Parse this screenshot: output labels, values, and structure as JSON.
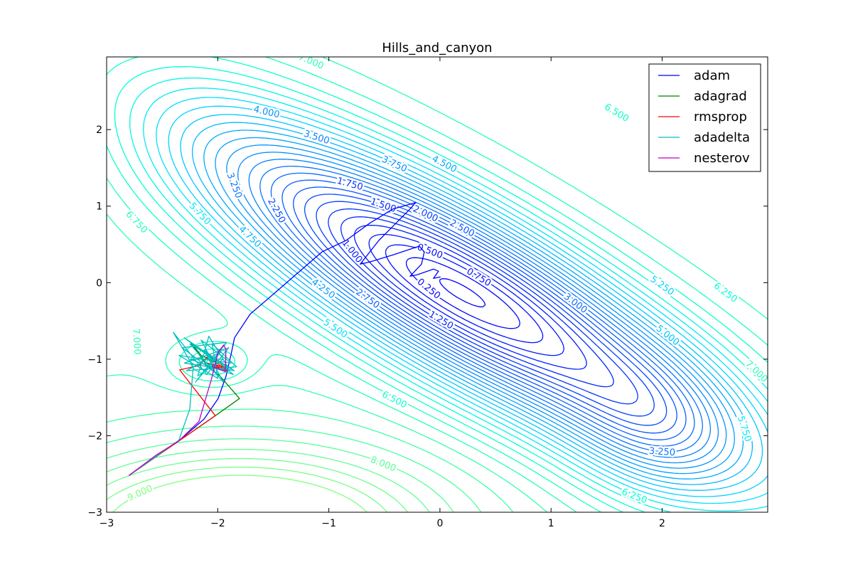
{
  "chart_data": {
    "type": "contour",
    "title": "Hills_and_canyon",
    "xlabel": "",
    "ylabel": "",
    "xlim": [
      -3,
      2.95
    ],
    "ylim": [
      -3,
      2.95
    ],
    "xticks": [
      -3,
      -2,
      -1,
      0,
      1,
      2
    ],
    "yticks": [
      -3,
      -2,
      -1,
      0,
      1,
      2
    ],
    "xtick_labels": [
      "−3",
      "−2",
      "−1",
      "0",
      "1",
      "2"
    ],
    "ytick_labels": [
      "−3",
      "−2",
      "−1",
      "0",
      "1",
      "2"
    ],
    "grid": false,
    "legend_placement": "top-right",
    "contour_levels": {
      "start": 0.25,
      "stop": 9.0,
      "step": 0.25
    },
    "colormap_stops": [
      {
        "level": 0.25,
        "color": "#0000ff"
      },
      {
        "level": 1.5,
        "color": "#0028ff"
      },
      {
        "level": 3.0,
        "color": "#0a6cff"
      },
      {
        "level": 4.5,
        "color": "#00aaff"
      },
      {
        "level": 5.5,
        "color": "#00e0ff"
      },
      {
        "level": 6.25,
        "color": "#00ffd8"
      },
      {
        "level": 7.0,
        "color": "#28ffb4"
      },
      {
        "level": 8.0,
        "color": "#58ff98"
      },
      {
        "level": 9.0,
        "color": "#80ff80"
      }
    ],
    "contour_labels": [
      {
        "text": "7.000",
        "x": -1.16,
        "y": 2.89
      },
      {
        "text": "6.500",
        "x": 1.59,
        "y": 2.22
      },
      {
        "text": "4.000",
        "x": -1.56,
        "y": 2.23
      },
      {
        "text": "3.500",
        "x": -1.11,
        "y": 1.9
      },
      {
        "text": "3.750",
        "x": -0.41,
        "y": 1.55
      },
      {
        "text": "4.500",
        "x": 0.04,
        "y": 1.55
      },
      {
        "text": "3.250",
        "x": -1.85,
        "y": 1.27
      },
      {
        "text": "1.750",
        "x": -0.81,
        "y": 1.29
      },
      {
        "text": "1.500",
        "x": -0.51,
        "y": 1.01
      },
      {
        "text": "2.000",
        "x": -0.13,
        "y": 0.9
      },
      {
        "text": "2.500",
        "x": 0.2,
        "y": 0.71
      },
      {
        "text": "2.250",
        "x": -1.47,
        "y": 0.94
      },
      {
        "text": "5.750",
        "x": -2.16,
        "y": 0.9
      },
      {
        "text": "6.750",
        "x": -2.73,
        "y": 0.79
      },
      {
        "text": "4.750",
        "x": -1.71,
        "y": 0.6
      },
      {
        "text": "1.000",
        "x": -0.79,
        "y": 0.41
      },
      {
        "text": "0.500",
        "x": -0.09,
        "y": 0.41
      },
      {
        "text": "0.750",
        "x": 0.35,
        "y": 0.07
      },
      {
        "text": "0.250",
        "x": -0.1,
        "y": -0.08
      },
      {
        "text": "4.250",
        "x": -1.05,
        "y": -0.08
      },
      {
        "text": "2.750",
        "x": -0.65,
        "y": -0.21
      },
      {
        "text": "3.000",
        "x": 1.22,
        "y": -0.27
      },
      {
        "text": "1.250",
        "x": 0.01,
        "y": -0.49
      },
      {
        "text": "5.500",
        "x": -0.94,
        "y": -0.6
      },
      {
        "text": "7.000",
        "x": -2.73,
        "y": -0.77
      },
      {
        "text": "5.250",
        "x": 2.0,
        "y": -0.04
      },
      {
        "text": "5.000",
        "x": 2.05,
        "y": -0.69
      },
      {
        "text": "6.250",
        "x": 2.57,
        "y": -0.13
      },
      {
        "text": "7.000",
        "x": 2.85,
        "y": -1.16
      },
      {
        "text": "5.750",
        "x": 2.74,
        "y": -1.91
      },
      {
        "text": "3.250",
        "x": 2.0,
        "y": -2.21
      },
      {
        "text": "6.250",
        "x": 1.75,
        "y": -2.79
      },
      {
        "text": "6.500",
        "x": -0.41,
        "y": -1.53
      },
      {
        "text": "8.000",
        "x": -0.51,
        "y": -2.37
      },
      {
        "text": "9.000",
        "x": -2.7,
        "y": -2.75
      }
    ],
    "series": [
      {
        "name": "adam",
        "color": "#0000ff",
        "points": [
          [
            -2.8,
            -2.52
          ],
          [
            -2.348,
            -2.065
          ],
          [
            -2.124,
            -1.785
          ],
          [
            -1.996,
            -1.514
          ],
          [
            -1.926,
            -1.224
          ],
          [
            -1.881,
            -0.944
          ],
          [
            -1.849,
            -0.72
          ],
          [
            -1.708,
            -0.411
          ],
          [
            -1.484,
            -0.131
          ],
          [
            -1.062,
            0.402
          ],
          [
            -0.845,
            0.551
          ],
          [
            -0.633,
            0.776
          ],
          [
            -0.422,
            0.963
          ],
          [
            -0.218,
            1.047
          ],
          [
            -0.269,
            0.963
          ],
          [
            -0.422,
            0.738
          ],
          [
            -0.55,
            0.551
          ],
          [
            -0.717,
            0.243
          ],
          [
            -0.633,
            0.271
          ],
          [
            -0.422,
            0.364
          ],
          [
            -0.186,
            0.477
          ],
          [
            -0.141,
            0.402
          ],
          [
            -0.166,
            0.243
          ],
          [
            -0.269,
            0.084
          ],
          [
            -0.205,
            0.103
          ],
          [
            -0.058,
            0.178
          ],
          [
            -0.013,
            0.15
          ],
          [
            -0.058,
            0.056
          ],
          [
            0.006,
            0.075
          ]
        ]
      },
      {
        "name": "adagrad",
        "color": "#008000",
        "points": [
          [
            -2.8,
            -2.52
          ],
          [
            -2.022,
            -1.738
          ],
          [
            -1.804,
            -1.514
          ],
          [
            -1.977,
            -1.224
          ],
          [
            -2.1,
            -1.08
          ],
          [
            -2.25,
            -0.77
          ],
          [
            -2.15,
            -0.95
          ],
          [
            -2.0,
            -1.05
          ],
          [
            -2.1,
            -1.0
          ]
        ]
      },
      {
        "name": "rmsprop",
        "color": "#ff0000",
        "points": [
          [
            -2.8,
            -2.52
          ],
          [
            -2.022,
            -1.738
          ],
          [
            -2.342,
            -1.14
          ],
          [
            -2.169,
            -1.084
          ],
          [
            -2.08,
            -0.95
          ],
          [
            -1.95,
            -1.12
          ],
          [
            -2.1,
            -1.05
          ],
          [
            -1.88,
            -1.12
          ],
          [
            -2.0,
            -1.02
          ],
          [
            -1.92,
            -1.15
          ],
          [
            -2.05,
            -1.08
          ]
        ]
      },
      {
        "name": "adadelta",
        "color": "#00bfbf",
        "points": [
          [
            -2.8,
            -2.52
          ],
          [
            -2.35,
            -2.06
          ],
          [
            -2.252,
            -1.654
          ],
          [
            -2.233,
            -1.318
          ],
          [
            -2.22,
            -1.1
          ],
          [
            -2.4,
            -0.65
          ],
          [
            -2.1,
            -1.2
          ],
          [
            -1.9,
            -0.85
          ],
          [
            -2.3,
            -1.05
          ],
          [
            -1.85,
            -1.15
          ],
          [
            -2.25,
            -0.8
          ],
          [
            -1.95,
            -1.3
          ],
          [
            -2.15,
            -0.75
          ],
          [
            -1.88,
            -1.05
          ],
          [
            -2.35,
            -0.95
          ],
          [
            -2.0,
            -1.25
          ],
          [
            -2.05,
            -0.8
          ],
          [
            -1.83,
            -1.1
          ],
          [
            -2.28,
            -1.15
          ],
          [
            -1.97,
            -0.9
          ],
          [
            -2.2,
            -1.3
          ],
          [
            -1.92,
            -0.78
          ],
          [
            -2.32,
            -0.85
          ],
          [
            -2.02,
            -1.18
          ],
          [
            -2.12,
            -0.88
          ],
          [
            -1.86,
            -1.2
          ],
          [
            -2.25,
            -1.0
          ],
          [
            -1.95,
            -1.0
          ],
          [
            -2.18,
            -1.22
          ],
          [
            -2.08,
            -0.7
          ],
          [
            -1.9,
            -1.12
          ],
          [
            -2.3,
            -0.72
          ],
          [
            -2.0,
            -1.05
          ],
          [
            -2.1,
            -0.95
          ],
          [
            -2.03,
            -1.02
          ]
        ]
      },
      {
        "name": "nesterov",
        "color": "#bf00bf",
        "points": [
          [
            -2.8,
            -2.52
          ],
          [
            -2.553,
            -2.252
          ],
          [
            -2.348,
            -2.065
          ],
          [
            -2.169,
            -1.813
          ],
          [
            -2.06,
            -1.28
          ],
          [
            -1.996,
            -0.907
          ],
          [
            -1.945,
            -0.813
          ],
          [
            -1.926,
            -0.879
          ],
          [
            -1.932,
            -1.159
          ],
          [
            -2.054,
            -1.093
          ]
        ]
      }
    ]
  }
}
